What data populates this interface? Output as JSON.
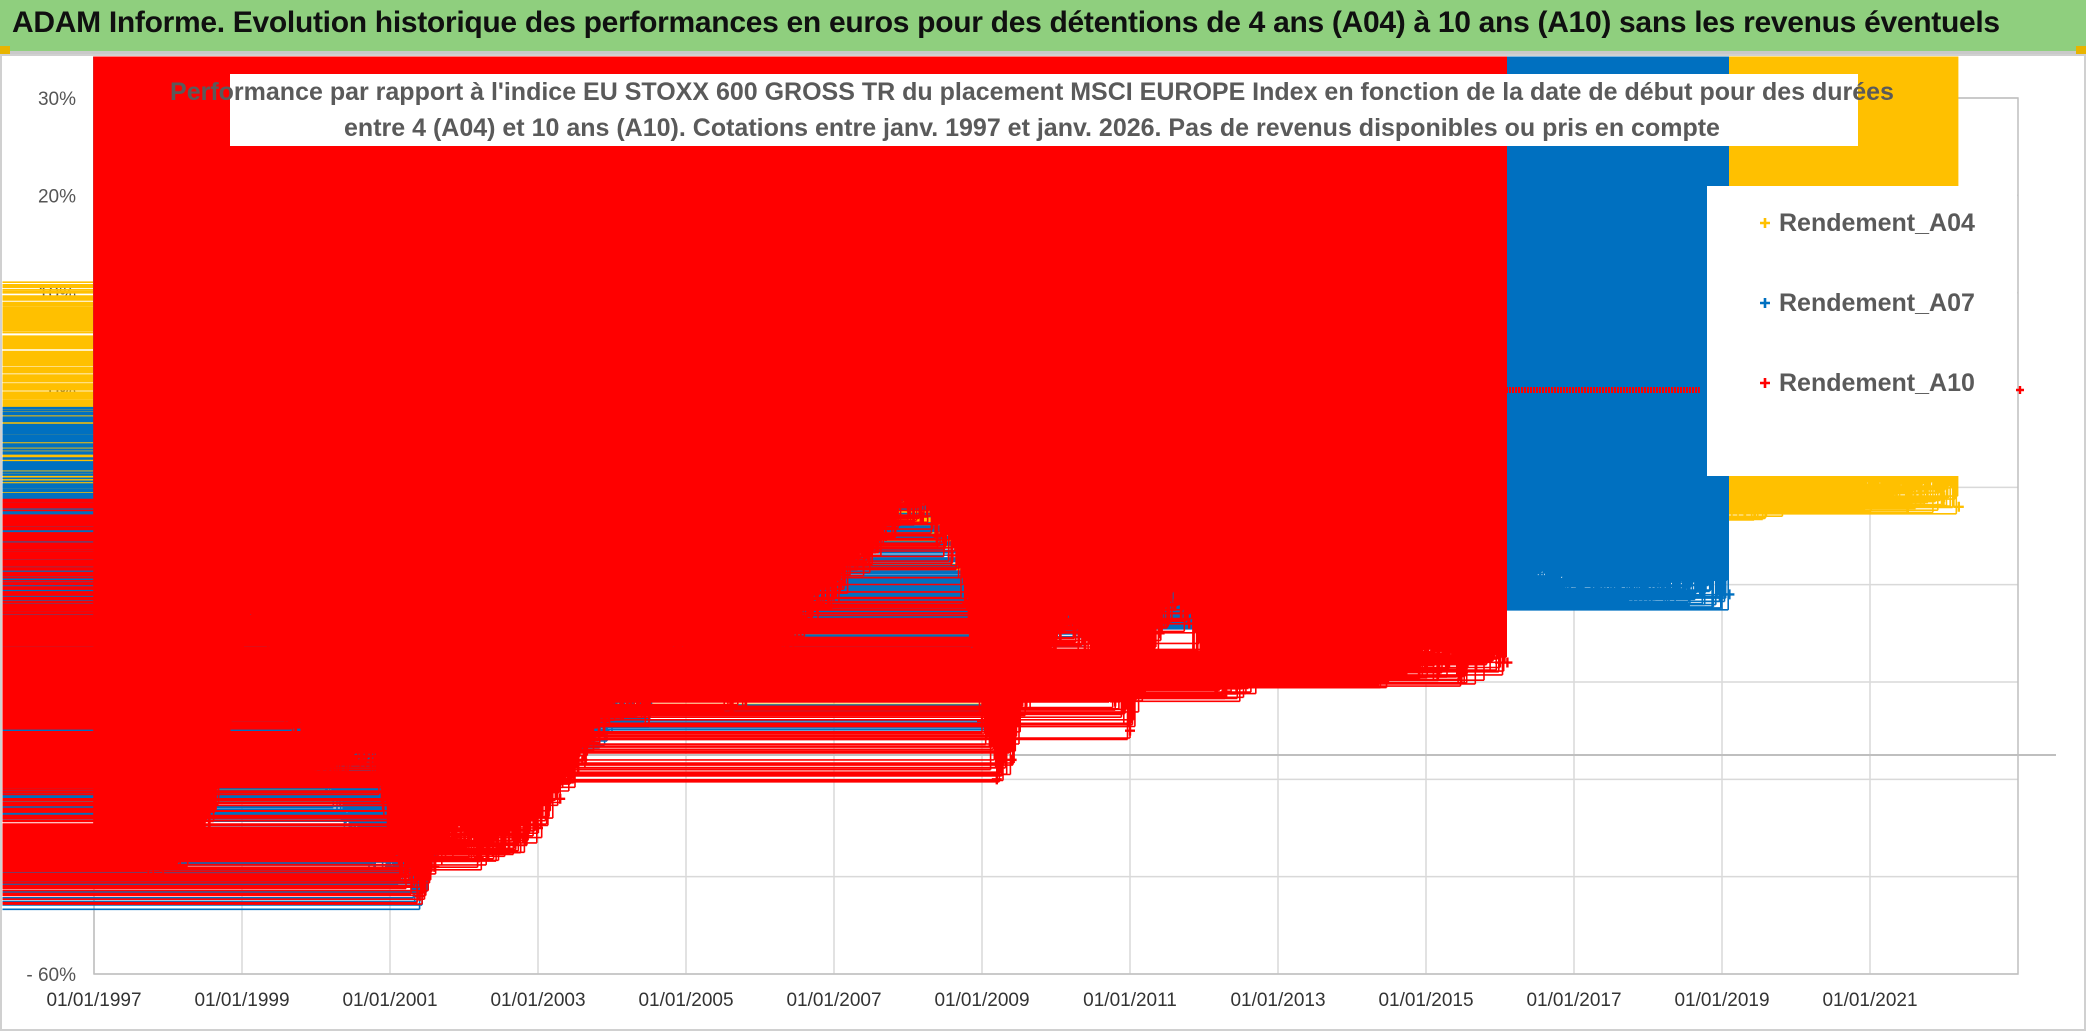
{
  "header": {
    "title": "ADAM Informe. Evolution historique des performances en euros pour des détentions de 4 ans (A04) à 10 ans (A10) sans les revenus éventuels"
  },
  "colors": {
    "banner": "#8fcf7e",
    "A04": "#ffc000",
    "A07": "#0070c0",
    "A10": "#ff0000",
    "grid": "#d9d9d9"
  },
  "chart_data": {
    "type": "scatter",
    "title_lines": [
      "Performance par rapport à l'indice EU STOXX 600 GROSS TR  du placement MSCI EUROPE Index en fonction de la date de début pour des durées",
      "entre 4 (A04) et 10 ans (A10). Cotations entre janv. 1997 et janv. 2026. Pas de revenus disponibles ou pris en compte"
    ],
    "xlabel": "",
    "ylabel": "",
    "x_unit": "year",
    "xlim": [
      1997.0,
      2023.0
    ],
    "ylim": [
      -60,
      30
    ],
    "y_ticks": [
      30,
      20,
      10,
      0,
      -10,
      -20,
      -30,
      -40,
      -50,
      -60
    ],
    "y_tick_labels": [
      "30%",
      "20%",
      "10%",
      "0%",
      "- 10%",
      "- 20%",
      "- 30%",
      "- 40%",
      "- 50%",
      "- 60%"
    ],
    "x_ticks": [
      1997,
      1999,
      2001,
      2003,
      2005,
      2007,
      2009,
      2011,
      2013,
      2015,
      2017,
      2019,
      2021
    ],
    "x_tick_labels": [
      "01/01/1997",
      "01/01/1999",
      "01/01/2001",
      "01/01/2003",
      "01/01/2005",
      "01/01/2007",
      "01/01/2009",
      "01/01/2011",
      "01/01/2013",
      "01/01/2015",
      "01/01/2017",
      "01/01/2019",
      "01/01/2021"
    ],
    "grid": true,
    "legend_position": "right",
    "series": [
      {
        "name": "Rendement_A04",
        "color": "#ffc000",
        "x": [
          1997.0,
          1997.3,
          1997.6,
          1997.9,
          1998.2,
          1998.5,
          1998.8,
          1999.0,
          1999.2,
          1999.4,
          1999.6,
          1999.8,
          2000.0,
          2000.3,
          2000.6,
          2000.9,
          2001.2,
          2001.5,
          2001.8,
          2002.1,
          2002.4,
          2002.7,
          2003.0,
          2003.3,
          2003.6,
          2003.9,
          2004.2,
          2004.5,
          2004.8,
          2005.0,
          2005.15,
          2005.3,
          2005.5,
          2005.8,
          2006.1,
          2006.4,
          2006.7,
          2007.0,
          2007.3,
          2007.6,
          2007.9,
          2008.2,
          2008.4,
          2008.6,
          2008.8,
          2009.0,
          2009.2,
          2009.5,
          2009.8,
          2010.1,
          2010.4,
          2010.7,
          2011.0,
          2011.2,
          2011.4,
          2011.6,
          2011.8,
          2012.0,
          2012.3,
          2012.6,
          2013.0,
          2013.5,
          2014.0,
          2014.5,
          2015.0,
          2015.5,
          2016.0,
          2016.5,
          2017.0,
          2017.5,
          2018.0,
          2018.5,
          2019.0,
          2019.5,
          2020.0,
          2020.5,
          2021.0,
          2021.5,
          2022.0,
          2022.2
        ],
        "y": [
          -9,
          -5,
          -2,
          1,
          4,
          7,
          10,
          9,
          7,
          3,
          -3,
          -10,
          -17,
          -22,
          -27,
          -30,
          -32,
          -33,
          -32,
          -35,
          -40,
          -41,
          -40,
          -38,
          -35,
          -33,
          -31,
          -20,
          -5,
          2,
          5,
          -5,
          -15,
          -18,
          -14,
          -4,
          -7,
          -10,
          -5,
          0,
          5,
          8,
          3,
          -3,
          -15,
          -28,
          -33,
          -20,
          -8,
          -5,
          -12,
          -10,
          -5,
          -2,
          -3,
          -5,
          -12,
          -15,
          -14,
          -14,
          -13,
          -14,
          -13,
          -14,
          -14,
          -13,
          -13,
          -12,
          -14,
          -13,
          -13,
          -12,
          -12,
          -12,
          -11,
          -11,
          -11,
          -11,
          -11,
          -12
        ]
      },
      {
        "name": "Rendement_A07",
        "color": "#0070c0",
        "x": [
          1997.0,
          1997.3,
          1997.6,
          1997.9,
          1998.2,
          1998.4,
          1998.7,
          1999.0,
          1999.2,
          1999.5,
          1999.8,
          2000.1,
          2000.4,
          2000.7,
          2001.0,
          2001.2,
          2001.4,
          2001.6,
          2001.8,
          2002.1,
          2002.4,
          2002.7,
          2003.0,
          2003.3,
          2003.6,
          2003.9,
          2004.2,
          2004.5,
          2004.8,
          2005.0,
          2005.3,
          2005.6,
          2005.9,
          2006.2,
          2006.5,
          2006.8,
          2007.1,
          2007.4,
          2007.7,
          2008.0,
          2008.2,
          2008.4,
          2008.6,
          2008.8,
          2009.0,
          2009.2,
          2009.5,
          2009.8,
          2010.1,
          2010.4,
          2010.7,
          2011.0,
          2011.2,
          2011.4,
          2011.6,
          2011.8,
          2012.0,
          2012.3,
          2012.6,
          2013.0,
          2013.5,
          2014.0,
          2014.5,
          2015.0,
          2015.5,
          2016.0,
          2016.5,
          2017.0,
          2017.5,
          2018.0,
          2018.5,
          2019.0,
          2019.1
        ],
        "y": [
          -29,
          -27,
          -26,
          -28,
          -33,
          -30,
          -24,
          -23,
          -25,
          -33,
          -37,
          -40,
          -44,
          -48,
          -49,
          -50,
          -52,
          -48,
          -44,
          -35,
          -37,
          -40,
          -42,
          -38,
          -36,
          -35,
          -32,
          -33,
          -25,
          -20,
          -22,
          -23,
          -21,
          -17,
          -15,
          -14,
          -12,
          -9,
          -6,
          -3,
          -4,
          -5,
          -6,
          -12,
          -28,
          -34,
          -30,
          -22,
          -21,
          -25,
          -22,
          -18,
          -14,
          -12,
          -15,
          -19,
          -22,
          -23,
          -22,
          -23,
          -23,
          -22,
          -22,
          -22,
          -21,
          -21,
          -20,
          -21,
          -21,
          -21,
          -21,
          -21,
          -21
        ]
      },
      {
        "name": "Rendement_A10",
        "color": "#ff0000",
        "x": [
          1997.0,
          1997.3,
          1997.6,
          1997.9,
          1998.2,
          1998.5,
          1998.8,
          1999.0,
          1999.2,
          1999.4,
          1999.6,
          1999.9,
          2000.2,
          2000.5,
          2000.8,
          2001.0,
          2001.2,
          2001.4,
          2001.6,
          2001.9,
          2002.2,
          2002.5,
          2002.8,
          2003.0,
          2003.3,
          2003.6,
          2003.9,
          2004.2,
          2004.5,
          2004.8,
          2005.0,
          2005.3,
          2005.6,
          2005.9,
          2006.2,
          2006.5,
          2006.8,
          2007.1,
          2007.4,
          2007.7,
          2008.0,
          2008.2,
          2008.4,
          2008.6,
          2008.8,
          2009.0,
          2009.2,
          2009.4,
          2009.6,
          2009.9,
          2010.2,
          2010.5,
          2010.8,
          2011.0,
          2011.2,
          2011.4,
          2011.6,
          2011.8,
          2012.0,
          2012.3,
          2012.6,
          2013.0,
          2013.5,
          2014.0,
          2014.5,
          2015.0,
          2015.5,
          2016.0,
          2016.1
        ],
        "y": [
          -46,
          -47,
          -48,
          -49,
          -48,
          -46,
          -38,
          -26,
          -23,
          -28,
          -33,
          -37,
          -40,
          -37,
          -38,
          -46,
          -50,
          -52,
          -49,
          -46,
          -48,
          -47,
          -46,
          -45,
          -42,
          -38,
          -34,
          -32,
          -33,
          -27,
          -27,
          -30,
          -32,
          -31,
          -28,
          -25,
          -22,
          -20,
          -18,
          -15,
          -12,
          -13,
          -15,
          -17,
          -22,
          -34,
          -40,
          -38,
          -32,
          -28,
          -24,
          -28,
          -32,
          -35,
          -30,
          -25,
          -22,
          -24,
          -29,
          -31,
          -30,
          -29,
          -29,
          -29,
          -29,
          -28,
          -29,
          -28,
          -28
        ]
      }
    ],
    "extra_marks": [
      {
        "series": "Rendement_A10",
        "x_start": 2016.0,
        "x_end": 2018.7,
        "y": 0,
        "note": "flat run of points at 0%"
      }
    ]
  }
}
